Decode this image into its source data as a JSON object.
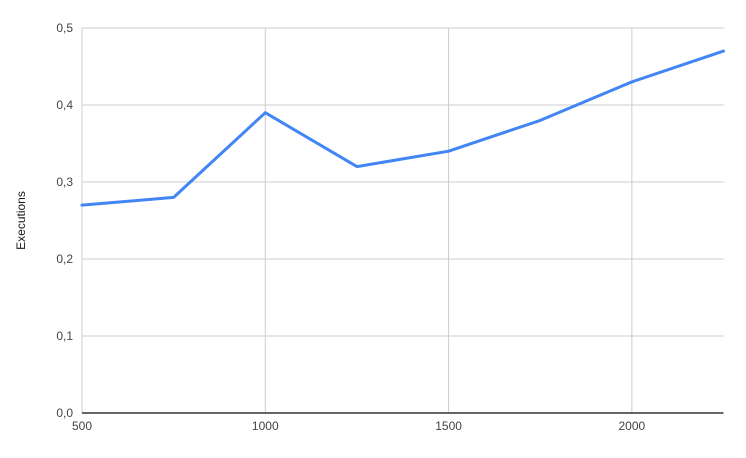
{
  "chart_data": {
    "type": "line",
    "x": [
      500,
      750,
      1000,
      1250,
      1500,
      1750,
      2000,
      2250
    ],
    "series": [
      {
        "name": "Executions",
        "values": [
          0.27,
          0.28,
          0.39,
          0.32,
          0.34,
          0.38,
          0.43,
          0.47
        ]
      }
    ],
    "title": "",
    "xlabel": "",
    "ylabel": "Executions",
    "xlim": [
      500,
      2250
    ],
    "ylim": [
      0,
      0.5
    ],
    "x_ticks": [
      500,
      1000,
      1500,
      2000
    ],
    "x_tick_labels": [
      "500",
      "1000",
      "1500",
      "2000"
    ],
    "y_ticks": [
      0,
      0.1,
      0.2,
      0.3,
      0.4,
      0.5
    ],
    "y_tick_labels": [
      "0,0",
      "0,1",
      "0,2",
      "0,3",
      "0,4",
      "0,5"
    ],
    "grid": true,
    "legend_position": "none",
    "colors": {
      "line": "#4285f4",
      "gridline": "#cccccc",
      "axis_line": "#333333",
      "tick_label": "#444444",
      "axis_title": "#1a1a1a",
      "background": "#ffffff"
    }
  }
}
